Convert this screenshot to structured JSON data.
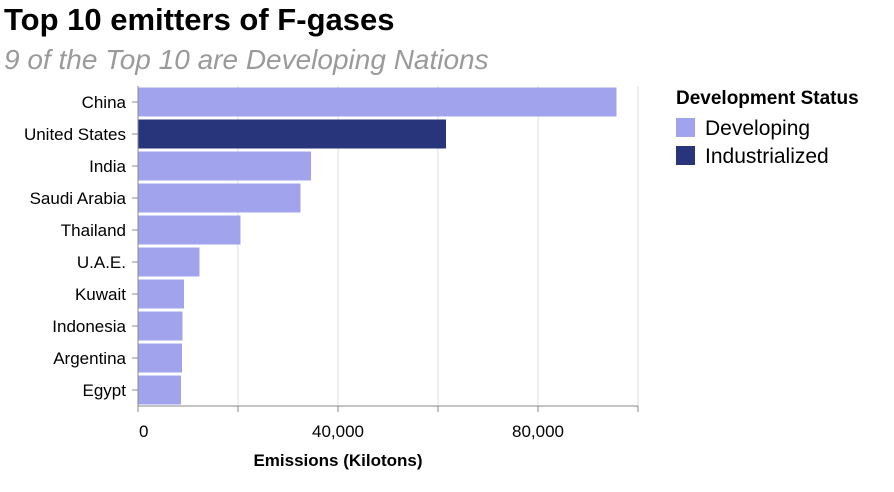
{
  "chart_data": {
    "type": "bar",
    "orientation": "horizontal",
    "title": "Top 10 emitters of F-gases",
    "subtitle": "9 of the Top 10 are Developing Nations",
    "xlabel": "Emissions (Kilotons)",
    "ylabel": "",
    "xlim": [
      0,
      100000
    ],
    "xticks": [
      0,
      20000,
      40000,
      60000,
      80000,
      100000
    ],
    "xtick_labels": [
      "0",
      "",
      "40,000",
      "",
      "80,000",
      ""
    ],
    "categories": [
      "China",
      "United States",
      "India",
      "Saudi Arabia",
      "Thailand",
      "U.A.E.",
      "Kuwait",
      "Indonesia",
      "Argentina",
      "Egypt"
    ],
    "values": [
      95700,
      61600,
      34600,
      32500,
      20500,
      12300,
      9200,
      8900,
      8800,
      8600
    ],
    "status": [
      "Developing",
      "Industrialized",
      "Developing",
      "Developing",
      "Developing",
      "Developing",
      "Developing",
      "Developing",
      "Developing",
      "Developing"
    ],
    "grid": true,
    "legend": {
      "title": "Development Status",
      "position": "right",
      "entries": [
        {
          "label": "Developing",
          "color": "#a1a4ec"
        },
        {
          "label": "Industrialized",
          "color": "#29357a"
        }
      ]
    }
  }
}
